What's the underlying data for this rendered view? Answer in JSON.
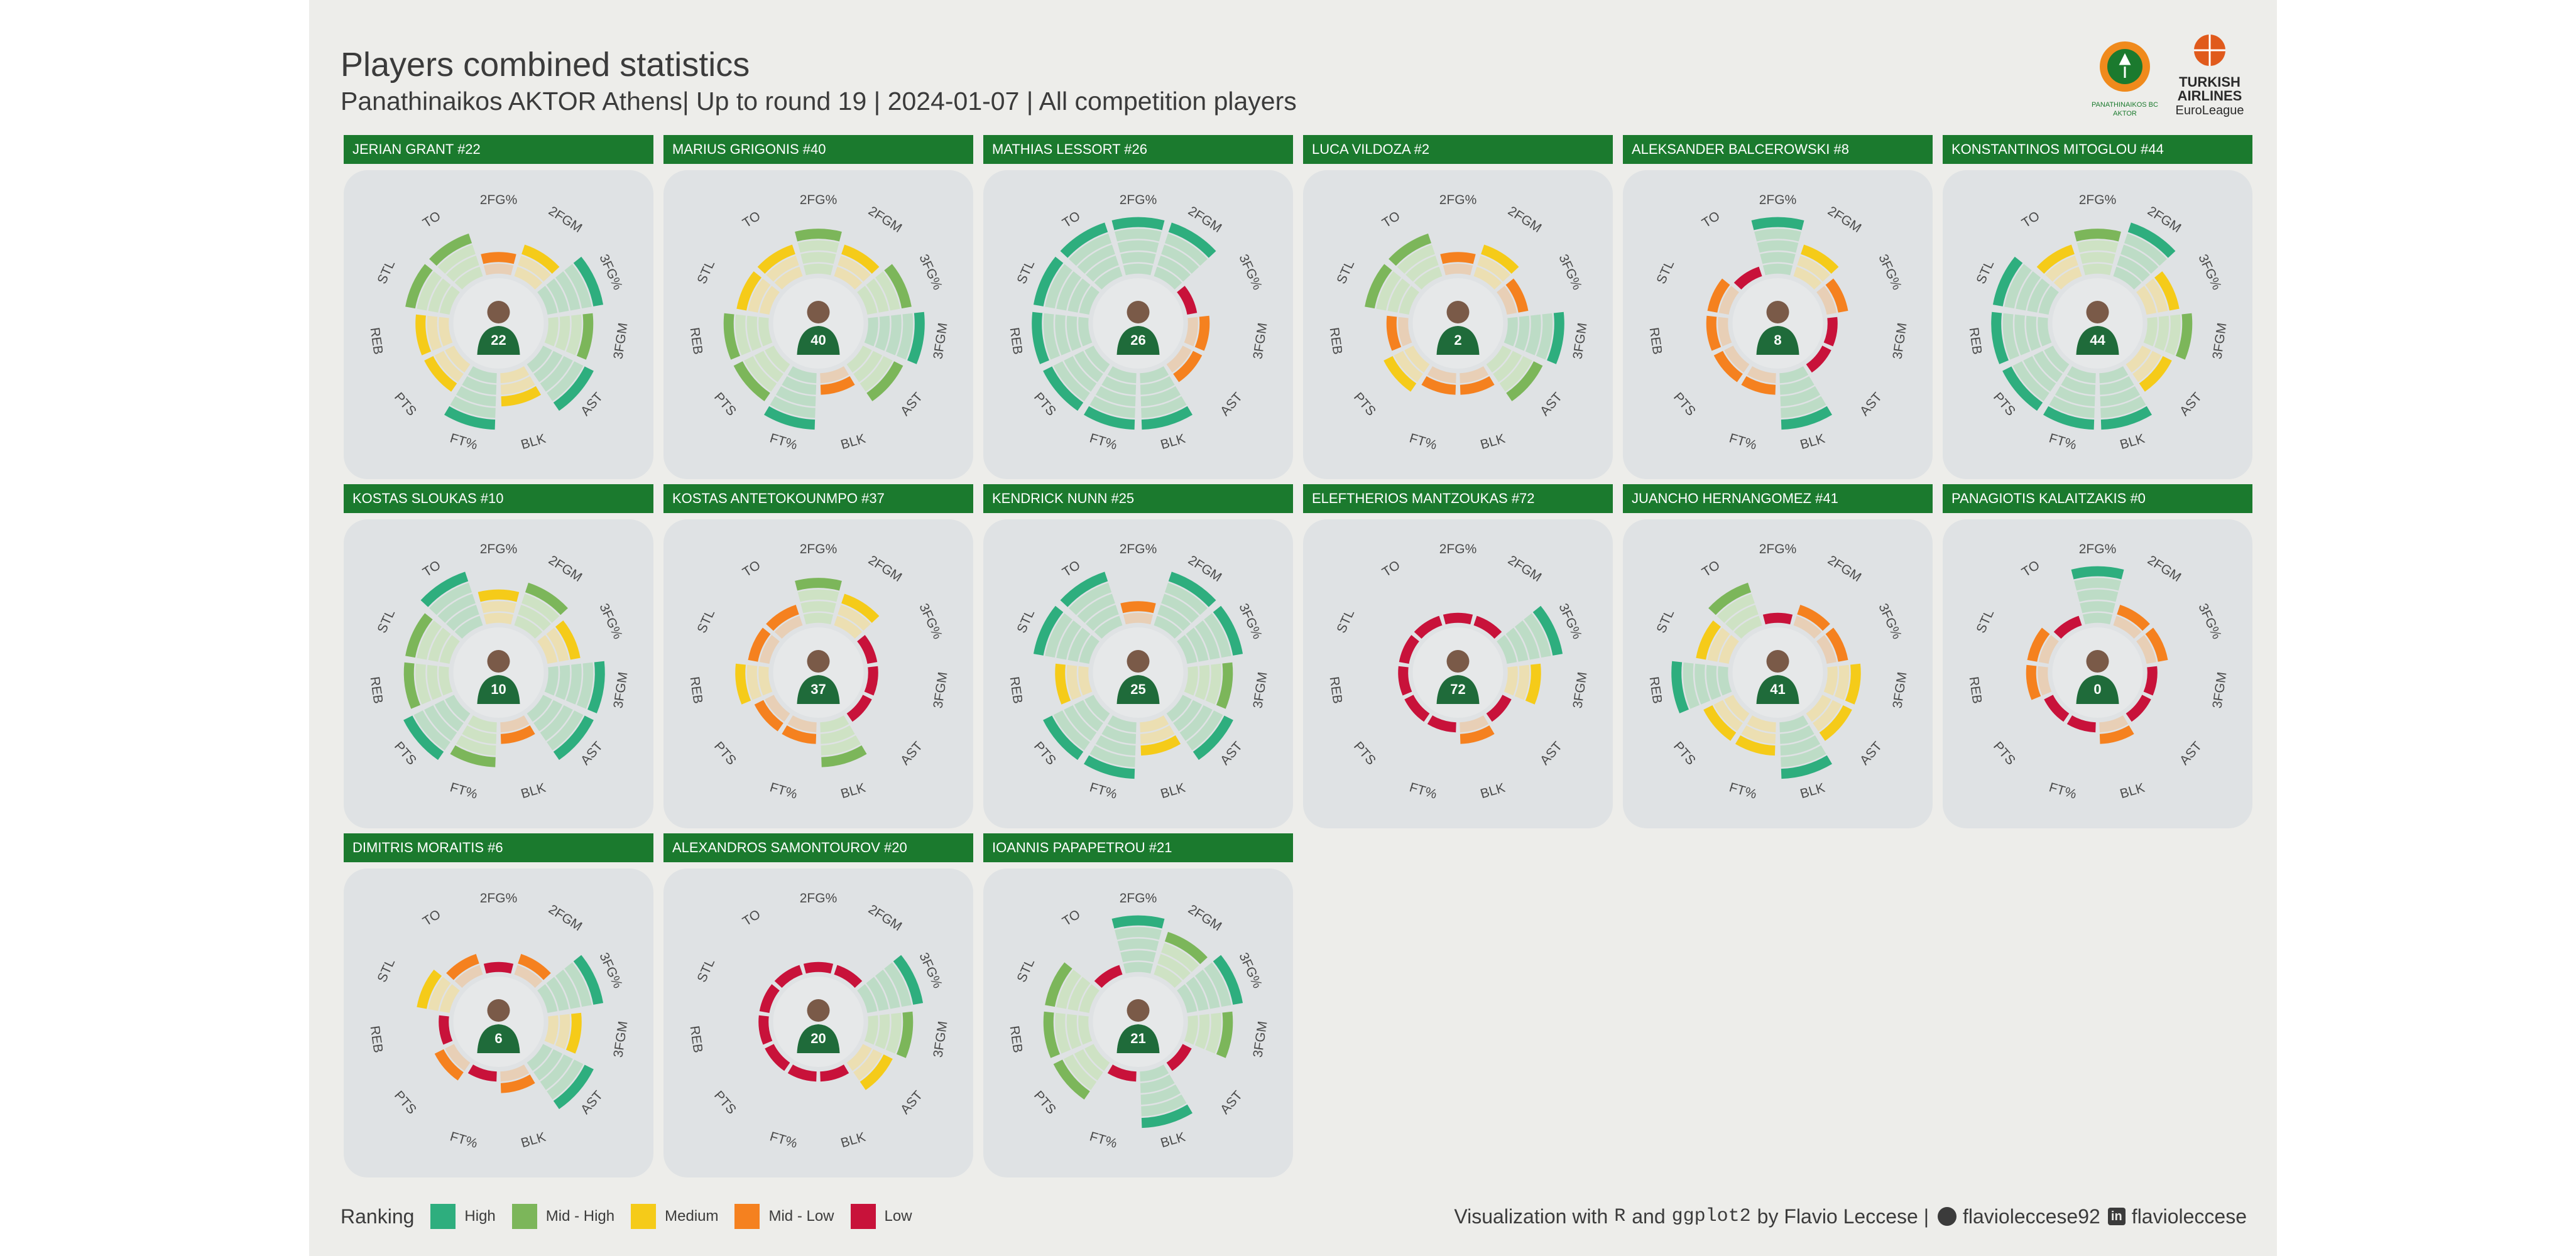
{
  "header": {
    "title": "Players combined statistics",
    "subtitle": "Panathinaikos AKTOR Athens| Up to round 19 | 2024-01-07 | All competition players"
  },
  "logos": {
    "team": {
      "lines": [
        "PANATHINAIKOS BC",
        "AKTOR"
      ]
    },
    "league": {
      "lines": [
        "TURKISH",
        "AIRLINES",
        "EuroLeague"
      ]
    }
  },
  "colors": {
    "background": "#ededea",
    "header_bar": "#1b7a2e",
    "card": "#dfe2e4",
    "rank": {
      "5": "#2eae7e",
      "4": "#7cb65a",
      "3": "#f5cb19",
      "2": "#f5811f",
      "1": "#c8123a"
    },
    "rank_tint": {
      "5": "#bddcc6",
      "4": "#cee2c4",
      "3": "#ecdfb2",
      "2": "#e8cfb6",
      "1": "#ddb4c0"
    }
  },
  "legend": {
    "title": "Ranking",
    "items": [
      {
        "rank": 5,
        "label": "High"
      },
      {
        "rank": 4,
        "label": "Mid - High"
      },
      {
        "rank": 3,
        "label": "Medium"
      },
      {
        "rank": 2,
        "label": "Mid - Low"
      },
      {
        "rank": 1,
        "label": "Low"
      }
    ]
  },
  "credit": {
    "prefix": "Visualization with",
    "r": "R",
    "and": "and",
    "pkg": "ggplot2",
    "by": "by Flavio Leccese |",
    "github": "flavioleccese92",
    "linkedin": "flavioleccese"
  },
  "chart_data": {
    "type": "radial-bar",
    "scale": "ranking 1 (Low) to 5 (High)",
    "metrics": [
      "2FG%",
      "2FGM",
      "3FG%",
      "3FGM",
      "AST",
      "BLK",
      "FT%",
      "PTS",
      "REB",
      "STL",
      "TO"
    ],
    "players": [
      {
        "name": "JERIAN GRANT #22",
        "number": "22",
        "values": [
          2,
          3,
          5,
          4,
          5,
          3,
          5,
          3,
          3,
          4,
          4
        ]
      },
      {
        "name": "MARIUS GRIGONIS #40",
        "number": "40",
        "values": [
          4,
          3,
          4,
          5,
          4,
          2,
          5,
          4,
          4,
          3,
          3
        ]
      },
      {
        "name": "MATHIAS LESSORT #26",
        "number": "26",
        "values": [
          5,
          5,
          1,
          2,
          2,
          5,
          5,
          5,
          5,
          5,
          5
        ]
      },
      {
        "name": "LUCA VILDOZA #2",
        "number": "2",
        "values": [
          2,
          3,
          2,
          5,
          4,
          2,
          2,
          3,
          2,
          4,
          4
        ]
      },
      {
        "name": "ALEKSANDER BALCEROWSKI #8",
        "number": "8",
        "values": [
          5,
          3,
          2,
          1,
          1,
          5,
          2,
          2,
          2,
          2,
          1
        ]
      },
      {
        "name": "KONSTANTINOS MITOGLOU #44",
        "number": "44",
        "values": [
          4,
          5,
          3,
          4,
          3,
          5,
          5,
          5,
          5,
          5,
          3
        ]
      },
      {
        "name": "KOSTAS SLOUKAS #10",
        "number": "10",
        "values": [
          3,
          4,
          3,
          5,
          5,
          2,
          4,
          5,
          4,
          4,
          5
        ]
      },
      {
        "name": "KOSTAS ANTETOKOUNMPO #37",
        "number": "37",
        "values": [
          4,
          3,
          1,
          1,
          1,
          4,
          2,
          2,
          3,
          2,
          2
        ]
      },
      {
        "name": "KENDRICK NUNN #25",
        "number": "25",
        "values": [
          2,
          5,
          5,
          4,
          5,
          3,
          5,
          5,
          3,
          5,
          5
        ]
      },
      {
        "name": "ELEFTHERIOS MANTZOUKAS #72",
        "number": "72",
        "values": [
          1,
          1,
          5,
          3,
          1,
          2,
          1,
          1,
          1,
          1,
          1
        ]
      },
      {
        "name": "JUANCHO HERNANGOMEZ #41",
        "number": "41",
        "values": [
          1,
          2,
          2,
          3,
          3,
          5,
          3,
          3,
          5,
          3,
          4
        ]
      },
      {
        "name": "PANAGIOTIS KALAITZAKIS #0",
        "number": "0",
        "values": [
          5,
          2,
          2,
          1,
          1,
          2,
          1,
          1,
          2,
          2,
          1
        ]
      },
      {
        "name": "DIMITRIS MORAITIS #6",
        "number": "6",
        "values": [
          1,
          2,
          5,
          3,
          5,
          2,
          1,
          2,
          1,
          3,
          2
        ]
      },
      {
        "name": "ALEXANDROS SAMONTOUROV #20",
        "number": "20",
        "values": [
          1,
          1,
          5,
          4,
          3,
          1,
          1,
          1,
          1,
          1,
          1
        ]
      },
      {
        "name": "IOANNIS PAPAPETROU #21",
        "number": "21",
        "values": [
          5,
          4,
          5,
          4,
          1,
          5,
          1,
          4,
          4,
          4,
          1
        ]
      }
    ]
  }
}
